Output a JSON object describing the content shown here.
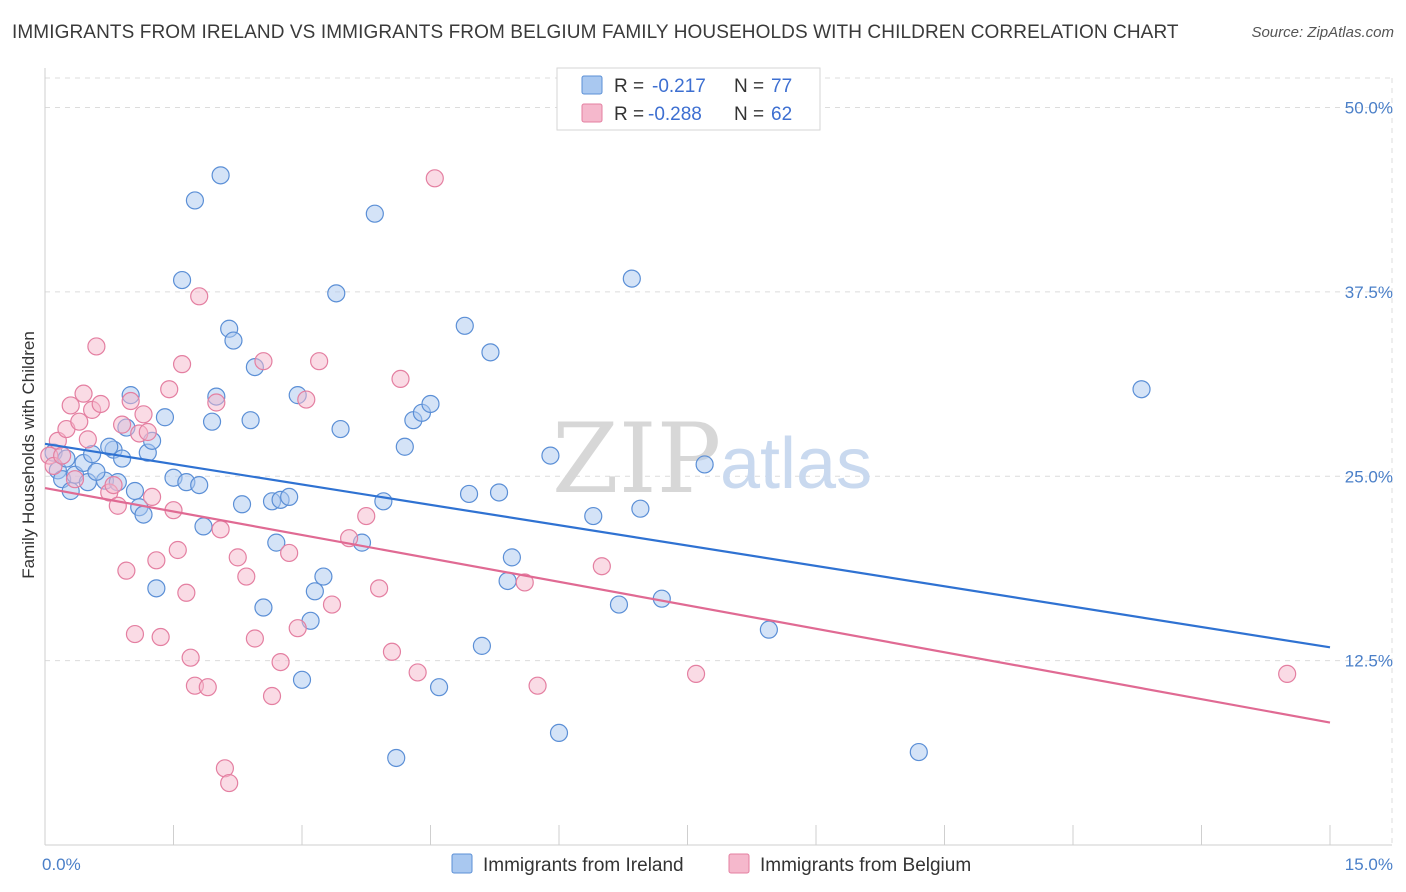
{
  "header": {
    "title": "IMMIGRANTS FROM IRELAND VS IMMIGRANTS FROM BELGIUM FAMILY HOUSEHOLDS WITH CHILDREN CORRELATION CHART",
    "source": "Source: ZipAtlas.com"
  },
  "legend": {
    "ireland": {
      "r_label": "R =",
      "r_value": "-0.217",
      "n_label": "N =",
      "n_value": "77"
    },
    "belgium": {
      "r_label": "R =",
      "r_value": "-0.288",
      "n_label": "N =",
      "n_value": "62"
    }
  },
  "watermark": {
    "zip": "ZIP",
    "atlas": "atlas"
  },
  "colors": {
    "ireland_fill": "#a9c8f0",
    "ireland_stroke": "#5b8fd6",
    "ireland_line": "#2f72d2",
    "belgium_fill": "#f5b8cc",
    "belgium_stroke": "#e47fa1",
    "belgium_line": "#e06a93",
    "tick_text": "#4a7fc8",
    "grid": "#dcdcdc"
  },
  "chart_data": {
    "type": "scatter",
    "title": "IMMIGRANTS FROM IRELAND VS IMMIGRANTS FROM BELGIUM FAMILY HOUSEHOLDS WITH CHILDREN CORRELATION CHART",
    "xlabel": "",
    "ylabel": "Family Households with Children",
    "xlim": [
      0,
      15
    ],
    "ylim": [
      0,
      52
    ],
    "x_tick_labels": [
      "0.0%",
      "15.0%"
    ],
    "y_ticks": [
      12.5,
      25.0,
      37.5,
      50.0
    ],
    "y_tick_labels": [
      "12.5%",
      "25.0%",
      "37.5%",
      "50.0%"
    ],
    "grid": true,
    "legend_position": "top-center",
    "series": [
      {
        "name": "Immigrants from Ireland",
        "color": "#a9c8f0",
        "trend": {
          "x": [
            0,
            15
          ],
          "y": [
            27.2,
            13.4
          ]
        },
        "points": [
          [
            0.1,
            26.6
          ],
          [
            0.15,
            25.4
          ],
          [
            0.2,
            24.8
          ],
          [
            0.25,
            26.2
          ],
          [
            0.3,
            24.0
          ],
          [
            0.35,
            25.1
          ],
          [
            0.45,
            25.9
          ],
          [
            0.5,
            24.6
          ],
          [
            0.55,
            26.5
          ],
          [
            0.7,
            24.7
          ],
          [
            0.8,
            26.8
          ],
          [
            0.85,
            24.6
          ],
          [
            0.9,
            26.2
          ],
          [
            0.95,
            28.3
          ],
          [
            1.0,
            30.5
          ],
          [
            1.05,
            24.0
          ],
          [
            1.1,
            22.9
          ],
          [
            1.15,
            22.4
          ],
          [
            1.2,
            26.6
          ],
          [
            1.25,
            27.4
          ],
          [
            1.3,
            17.4
          ],
          [
            1.4,
            29.0
          ],
          [
            1.5,
            24.9
          ],
          [
            1.6,
            38.3
          ],
          [
            1.65,
            24.6
          ],
          [
            1.75,
            43.7
          ],
          [
            1.8,
            24.4
          ],
          [
            1.85,
            21.6
          ],
          [
            1.95,
            28.7
          ],
          [
            2.0,
            30.4
          ],
          [
            2.05,
            45.4
          ],
          [
            2.15,
            35.0
          ],
          [
            2.2,
            34.2
          ],
          [
            2.3,
            23.1
          ],
          [
            2.4,
            28.8
          ],
          [
            2.45,
            32.4
          ],
          [
            2.55,
            16.1
          ],
          [
            2.65,
            23.3
          ],
          [
            2.7,
            20.5
          ],
          [
            2.75,
            23.4
          ],
          [
            2.85,
            23.6
          ],
          [
            2.95,
            30.5
          ],
          [
            3.0,
            11.2
          ],
          [
            3.1,
            15.2
          ],
          [
            3.15,
            17.2
          ],
          [
            3.25,
            18.2
          ],
          [
            3.4,
            37.4
          ],
          [
            3.45,
            28.2
          ],
          [
            3.7,
            20.5
          ],
          [
            3.85,
            42.8
          ],
          [
            3.95,
            23.3
          ],
          [
            4.1,
            5.9
          ],
          [
            4.2,
            27.0
          ],
          [
            4.3,
            28.8
          ],
          [
            4.4,
            29.3
          ],
          [
            4.5,
            29.9
          ],
          [
            4.6,
            10.7
          ],
          [
            4.9,
            35.2
          ],
          [
            4.95,
            23.8
          ],
          [
            5.1,
            13.5
          ],
          [
            5.2,
            33.4
          ],
          [
            5.3,
            23.9
          ],
          [
            5.4,
            17.9
          ],
          [
            5.45,
            19.5
          ],
          [
            5.9,
            26.4
          ],
          [
            6.0,
            7.6
          ],
          [
            6.4,
            22.3
          ],
          [
            6.7,
            16.3
          ],
          [
            6.85,
            38.4
          ],
          [
            6.95,
            22.8
          ],
          [
            7.2,
            16.7
          ],
          [
            7.7,
            25.8
          ],
          [
            8.45,
            14.6
          ],
          [
            10.2,
            6.3
          ],
          [
            12.8,
            30.9
          ],
          [
            0.6,
            25.3
          ],
          [
            0.75,
            27.0
          ]
        ]
      },
      {
        "name": "Immigrants from Belgium",
        "color": "#f5b8cc",
        "trend": {
          "x": [
            0,
            15
          ],
          "y": [
            24.2,
            8.3
          ]
        },
        "points": [
          [
            0.05,
            26.4
          ],
          [
            0.1,
            25.7
          ],
          [
            0.15,
            27.4
          ],
          [
            0.2,
            26.4
          ],
          [
            0.25,
            28.2
          ],
          [
            0.3,
            29.8
          ],
          [
            0.35,
            24.8
          ],
          [
            0.4,
            28.7
          ],
          [
            0.45,
            30.6
          ],
          [
            0.5,
            27.5
          ],
          [
            0.55,
            29.5
          ],
          [
            0.65,
            29.9
          ],
          [
            0.75,
            23.9
          ],
          [
            0.8,
            24.4
          ],
          [
            0.85,
            23.0
          ],
          [
            0.9,
            28.5
          ],
          [
            0.95,
            18.6
          ],
          [
            1.0,
            30.1
          ],
          [
            1.05,
            14.3
          ],
          [
            1.1,
            27.9
          ],
          [
            1.15,
            29.2
          ],
          [
            1.2,
            28.0
          ],
          [
            1.25,
            23.6
          ],
          [
            1.3,
            19.3
          ],
          [
            1.35,
            14.1
          ],
          [
            1.45,
            30.9
          ],
          [
            1.5,
            22.7
          ],
          [
            1.55,
            20.0
          ],
          [
            1.6,
            32.6
          ],
          [
            1.65,
            17.1
          ],
          [
            1.7,
            12.7
          ],
          [
            1.75,
            10.8
          ],
          [
            1.8,
            37.2
          ],
          [
            1.9,
            10.7
          ],
          [
            2.0,
            30.0
          ],
          [
            2.05,
            21.4
          ],
          [
            2.1,
            5.2
          ],
          [
            2.15,
            4.2
          ],
          [
            2.25,
            19.5
          ],
          [
            2.35,
            18.2
          ],
          [
            2.45,
            14.0
          ],
          [
            2.55,
            32.8
          ],
          [
            2.65,
            10.1
          ],
          [
            2.75,
            12.4
          ],
          [
            2.85,
            19.8
          ],
          [
            2.95,
            14.7
          ],
          [
            3.05,
            30.2
          ],
          [
            3.2,
            32.8
          ],
          [
            3.35,
            16.3
          ],
          [
            3.55,
            20.8
          ],
          [
            3.75,
            22.3
          ],
          [
            3.9,
            17.4
          ],
          [
            4.05,
            13.1
          ],
          [
            4.15,
            31.6
          ],
          [
            4.35,
            11.7
          ],
          [
            4.55,
            45.2
          ],
          [
            5.6,
            17.8
          ],
          [
            5.75,
            10.8
          ],
          [
            6.5,
            18.9
          ],
          [
            7.6,
            11.6
          ],
          [
            14.5,
            11.6
          ],
          [
            0.6,
            33.8
          ]
        ]
      }
    ]
  },
  "bottom_legend": {
    "ireland": "Immigrants from Ireland",
    "belgium": "Immigrants from Belgium"
  }
}
